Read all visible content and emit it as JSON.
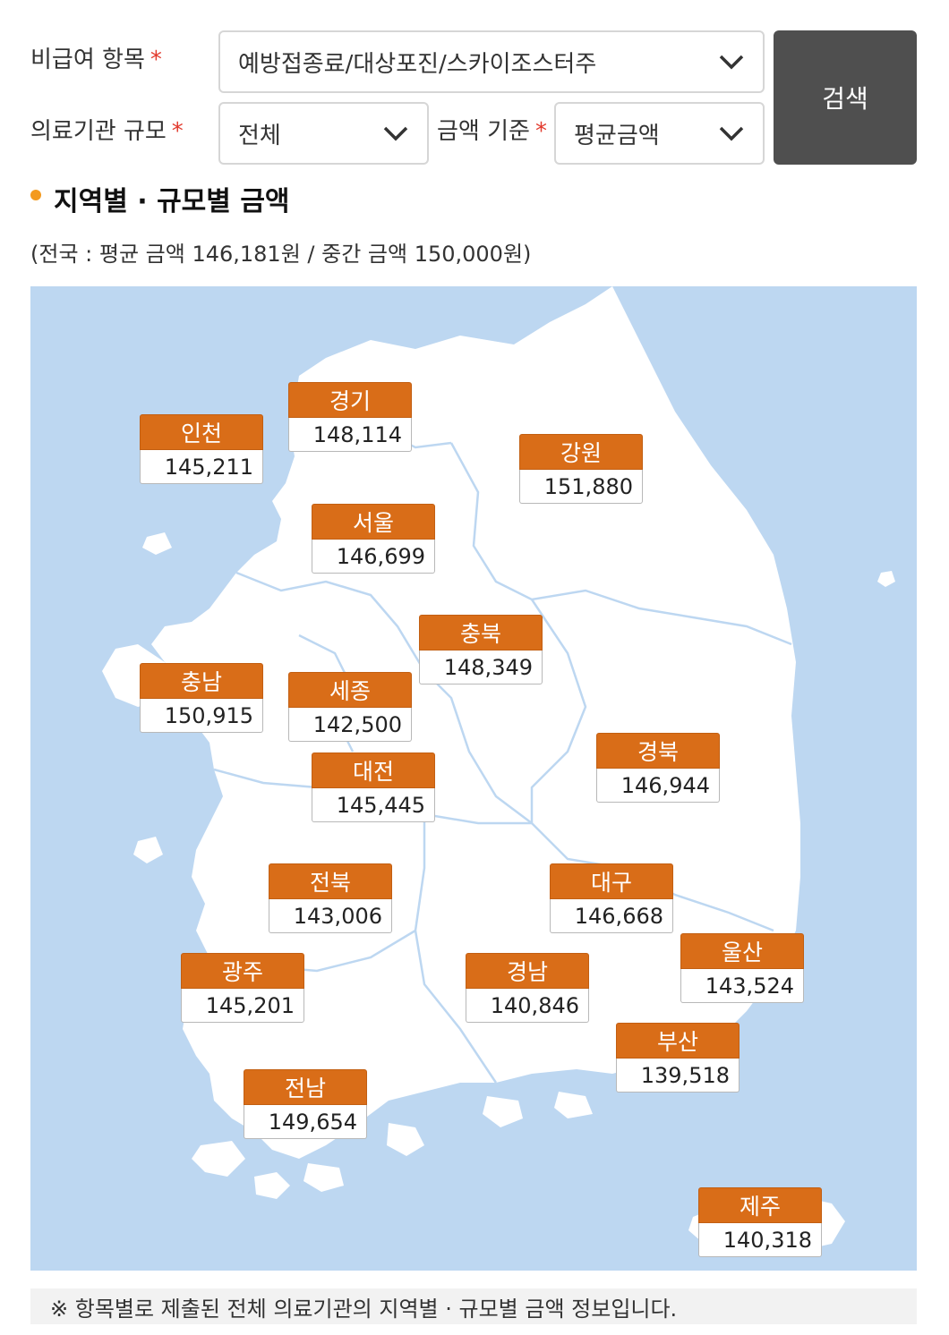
{
  "filters": {
    "item": {
      "label": "비급여 항목",
      "required_mark": "*",
      "value": "예방접종료/대상포진/스카이조스터주"
    },
    "scale": {
      "label": "의료기관 규모",
      "required_mark": "*",
      "value": "전체"
    },
    "basis": {
      "label": "금액 기준",
      "required_mark": "*",
      "value": "평균금액"
    },
    "search_label": "검색"
  },
  "section": {
    "title": "지역별 · 규모별 금액",
    "subtitle": "(전국 : 평균 금액 146,181원 / 중간 금액 150,000원)"
  },
  "regions": [
    {
      "name": "경기",
      "value": "148,114"
    },
    {
      "name": "인천",
      "value": "145,211"
    },
    {
      "name": "강원",
      "value": "151,880"
    },
    {
      "name": "서울",
      "value": "146,699"
    },
    {
      "name": "충북",
      "value": "148,349"
    },
    {
      "name": "충남",
      "value": "150,915"
    },
    {
      "name": "세종",
      "value": "142,500"
    },
    {
      "name": "대전",
      "value": "145,445"
    },
    {
      "name": "경북",
      "value": "146,944"
    },
    {
      "name": "전북",
      "value": "143,006"
    },
    {
      "name": "대구",
      "value": "146,668"
    },
    {
      "name": "울산",
      "value": "143,524"
    },
    {
      "name": "광주",
      "value": "145,201"
    },
    {
      "name": "경남",
      "value": "140,846"
    },
    {
      "name": "부산",
      "value": "139,518"
    },
    {
      "name": "전남",
      "value": "149,654"
    },
    {
      "name": "제주",
      "value": "140,318"
    }
  ],
  "footnote": "※ 항목별로 제출된 전체 의료기관의 지역별 · 규모별 금액 정보입니다.",
  "colors": {
    "accent": "#d96d18",
    "button": "#4f4f4f",
    "sea": "#bdd7f1",
    "bullet": "#f39a1f",
    "required": "#e23b2e"
  }
}
